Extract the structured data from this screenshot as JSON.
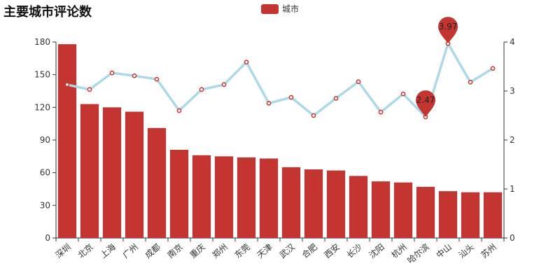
{
  "title": "主要城市评论数",
  "legend": {
    "label": "城市",
    "color": "#c23531"
  },
  "colors": {
    "bar": "#c23531",
    "line": "#add8e6",
    "point_stroke": "#c23531",
    "axis": "#333333"
  },
  "chart_data": {
    "type": "bar",
    "title": "主要城市评论数",
    "categories": [
      "深圳",
      "北京",
      "上海",
      "广州",
      "成都",
      "南京",
      "重庆",
      "郑州",
      "东莞",
      "天津",
      "武汉",
      "合肥",
      "西安",
      "长沙",
      "沈阳",
      "杭州",
      "哈尔滨",
      "中山",
      "汕头",
      "苏州"
    ],
    "series": [
      {
        "name": "城市",
        "type": "bar",
        "axis": "left",
        "values": [
          178,
          123,
          120,
          116,
          101,
          81,
          76,
          75,
          74,
          73,
          65,
          63,
          62,
          57,
          52,
          51,
          47,
          43,
          42,
          42
        ]
      },
      {
        "type": "line",
        "axis": "right",
        "values": [
          3.13,
          3.03,
          3.37,
          3.31,
          3.24,
          2.6,
          3.03,
          3.13,
          3.59,
          2.75,
          2.87,
          2.5,
          2.85,
          3.19,
          2.57,
          2.94,
          2.47,
          3.97,
          3.18,
          3.46
        ]
      }
    ],
    "left_axis": {
      "min": 0,
      "max": 180,
      "ticks": [
        0,
        30,
        60,
        90,
        120,
        150,
        180
      ]
    },
    "right_axis": {
      "min": 0,
      "max": 4,
      "ticks": [
        0,
        1,
        2,
        3,
        4
      ]
    },
    "mark_points": [
      {
        "label": "3.97",
        "category": "中山",
        "value": 3.97
      },
      {
        "label": "2.47",
        "category": "哈尔滨",
        "value": 2.47
      }
    ],
    "grid": false,
    "legend_position": "top-center"
  }
}
